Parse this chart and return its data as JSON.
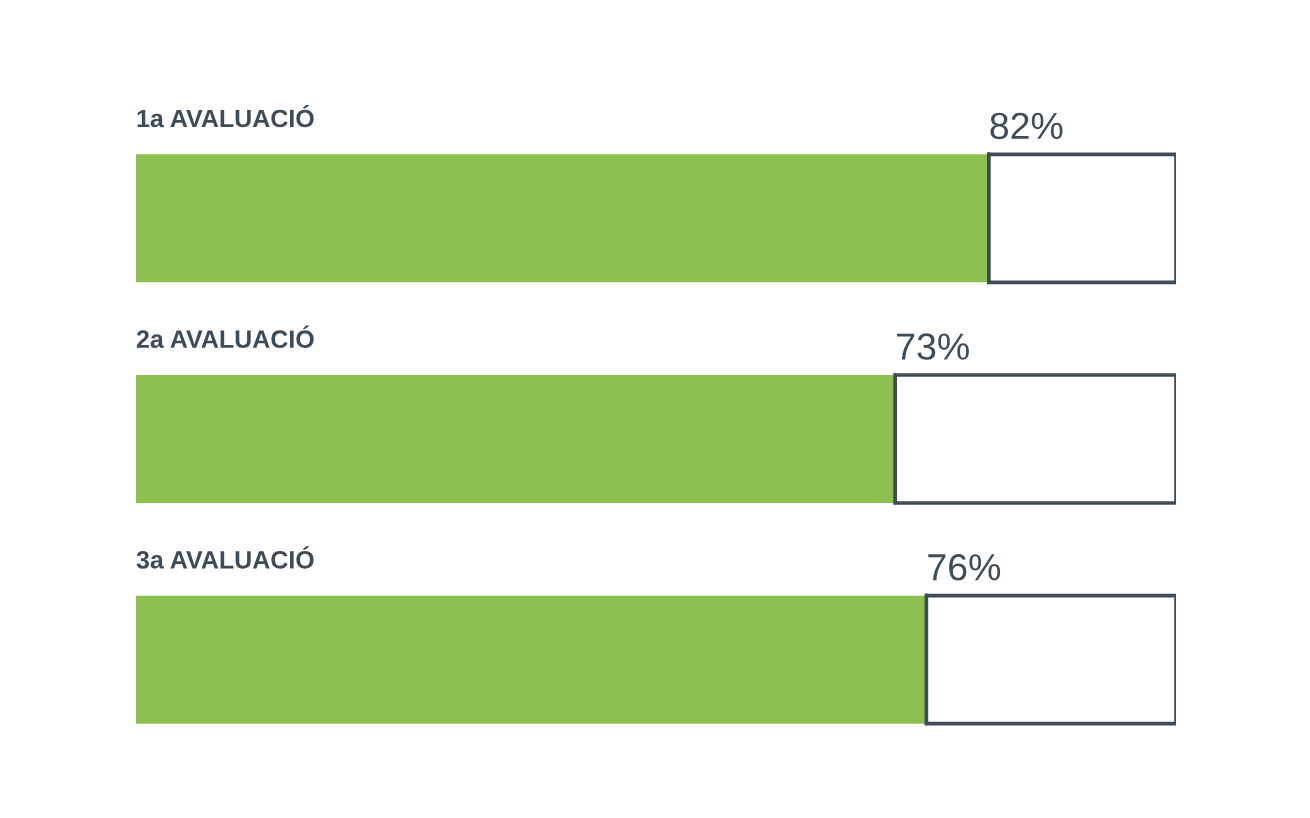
{
  "chart_data": {
    "type": "bar",
    "orientation": "horizontal",
    "stacked": true,
    "categories": [
      "1a AVALUACIÓ",
      "2a AVALUACIÓ",
      "3a AVALUACIÓ"
    ],
    "xlim": [
      0,
      100
    ],
    "tick_labels": "y",
    "legend": false,
    "series": [
      {
        "color": "#8cc152",
        "values": [
          82,
          73,
          76
        ],
        "value_labels": [
          "82%",
          "73%",
          "76%"
        ]
      },
      {
        "color": "#ffffff",
        "values": [
          18,
          27,
          24
        ]
      }
    ]
  }
}
